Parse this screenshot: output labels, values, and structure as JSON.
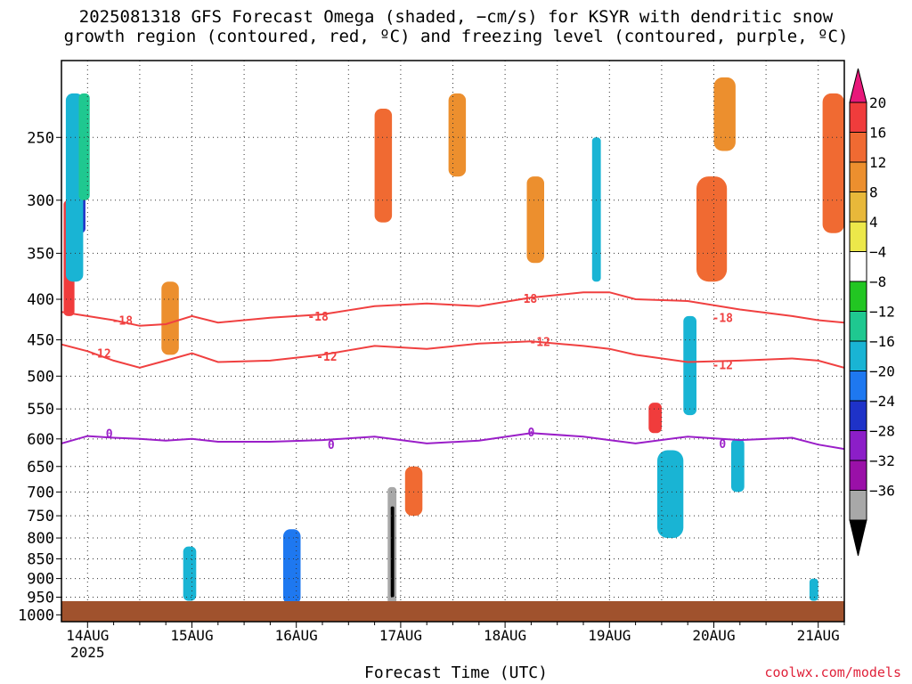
{
  "title_line1": "2025081318 GFS Forecast Omega (shaded, −cm/s) for KSYR with dendritic snow",
  "title_line2": "growth region (contoured, red, ºC) and freezing level (contoured, purple, ºC)",
  "credit": "coolwx.com/models",
  "chart_data": {
    "type": "heatmap",
    "title": "2025081318 GFS Forecast Omega (shaded, −cm/s) for KSYR with dendritic snow growth region (contoured, red, ºC) and freezing level (contoured, purple, ºC)",
    "xlabel": "Forecast Time (UTC)",
    "ylabel": "",
    "x_ticks": [
      "14AUG",
      "15AUG",
      "16AUG",
      "17AUG",
      "18AUG",
      "19AUG",
      "20AUG",
      "21AUG"
    ],
    "x_tick_year": "2025",
    "x_tick_hours": [
      6,
      30,
      54,
      78,
      102,
      126,
      150,
      174
    ],
    "x_range_hours": [
      0,
      180
    ],
    "y_ticks": [
      250,
      300,
      350,
      400,
      450,
      500,
      550,
      600,
      650,
      700,
      750,
      800,
      850,
      900,
      950,
      1000
    ],
    "y_range_hpa": [
      200,
      1020
    ],
    "y_scale": "log, pressure decreasing upward",
    "grid": true,
    "colorbar": {
      "labels": [
        "20",
        "16",
        "12",
        "8",
        "4",
        "−4",
        "−8",
        "−12",
        "−16",
        "−20",
        "−24",
        "−28",
        "−32",
        "−36"
      ],
      "colors": [
        "#e8187a",
        "#f03c3c",
        "#f06a32",
        "#ec8f2e",
        "#e8b83a",
        "#ece84a",
        "#ffffff",
        "#22c622",
        "#1fc890",
        "#19b4d4",
        "#1e78f0",
        "#1e32c8",
        "#8c1ec8",
        "#9a10a8",
        "#a8a8a8",
        "#000000"
      ]
    },
    "contours": [
      {
        "level": "-18",
        "color": "#f04040",
        "x_hours": [
          0,
          6,
          12,
          18,
          24,
          30,
          36,
          48,
          60,
          72,
          84,
          96,
          108,
          120,
          126,
          132,
          144,
          156,
          168,
          174,
          180
        ],
        "y_hpa": [
          415,
          420,
          425,
          432,
          430,
          420,
          428,
          422,
          418,
          408,
          405,
          408,
          398,
          392,
          392,
          400,
          402,
          412,
          420,
          425,
          428
        ]
      },
      {
        "level": "-12",
        "color": "#f04040",
        "x_hours": [
          0,
          6,
          12,
          18,
          24,
          30,
          36,
          48,
          60,
          72,
          84,
          96,
          108,
          120,
          126,
          132,
          144,
          156,
          168,
          174,
          180
        ],
        "y_hpa": [
          456,
          465,
          478,
          488,
          478,
          468,
          480,
          478,
          470,
          458,
          462,
          455,
          452,
          458,
          462,
          470,
          480,
          478,
          475,
          478,
          488
        ]
      },
      {
        "level": "0",
        "color": "#9a1ec8",
        "x_hours": [
          0,
          6,
          12,
          18,
          24,
          30,
          36,
          48,
          60,
          72,
          84,
          96,
          108,
          120,
          126,
          132,
          144,
          156,
          168,
          174,
          180
        ],
        "y_hpa": [
          608,
          595,
          598,
          600,
          603,
          600,
          605,
          605,
          602,
          596,
          608,
          603,
          590,
          596,
          602,
          608,
          596,
          602,
          598,
          610,
          618
        ]
      }
    ],
    "contour_labels": [
      {
        "text": "-18",
        "x_hour": 14,
        "y_hpa": 425
      },
      {
        "text": "-18",
        "x_hour": 59,
        "y_hpa": 420
      },
      {
        "text": "-18",
        "x_hour": 107,
        "y_hpa": 399
      },
      {
        "text": "-18",
        "x_hour": 152,
        "y_hpa": 422
      },
      {
        "text": "-12",
        "x_hour": 9,
        "y_hpa": 468
      },
      {
        "text": "-12",
        "x_hour": 61,
        "y_hpa": 472
      },
      {
        "text": "-12",
        "x_hour": 110,
        "y_hpa": 452
      },
      {
        "text": "-12",
        "x_hour": 152,
        "y_hpa": 484
      },
      {
        "text": "0",
        "x_hour": 11,
        "y_hpa": 590
      },
      {
        "text": "0",
        "x_hour": 62,
        "y_hpa": 610
      },
      {
        "text": "0",
        "x_hour": 108,
        "y_hpa": 588
      },
      {
        "text": "0",
        "x_hour": 152,
        "y_hpa": 608
      }
    ],
    "shaded_cells": [
      {
        "x_hours": [
          0.5,
          3
        ],
        "y_hpa": [
          300,
          420
        ],
        "value": 16
      },
      {
        "x_hours": [
          3,
          5.5
        ],
        "y_hpa": [
          290,
          330
        ],
        "value": -20
      },
      {
        "x_hours": [
          1,
          5
        ],
        "y_hpa": [
          220,
          380
        ],
        "value": -12
      },
      {
        "x_hours": [
          4,
          6.5
        ],
        "y_hpa": [
          220,
          300
        ],
        "value": -8
      },
      {
        "x_hours": [
          23,
          27
        ],
        "y_hpa": [
          380,
          470
        ],
        "value": 8
      },
      {
        "x_hours": [
          28,
          31
        ],
        "y_hpa": [
          820,
          960
        ],
        "value": -12
      },
      {
        "x_hours": [
          51,
          55
        ],
        "y_hpa": [
          780,
          970
        ],
        "value": -16
      },
      {
        "x_hours": [
          75,
          77
        ],
        "y_hpa": [
          690,
          975
        ],
        "value": -32
      },
      {
        "x_hours": [
          75.7,
          76.5
        ],
        "y_hpa": [
          730,
          950
        ],
        "value": -36
      },
      {
        "x_hours": [
          79,
          83
        ],
        "y_hpa": [
          650,
          750
        ],
        "value": 12
      },
      {
        "x_hours": [
          72,
          76
        ],
        "y_hpa": [
          230,
          320
        ],
        "value": 12
      },
      {
        "x_hours": [
          89,
          93
        ],
        "y_hpa": [
          220,
          280
        ],
        "value": 8
      },
      {
        "x_hours": [
          107,
          111
        ],
        "y_hpa": [
          280,
          360
        ],
        "value": 8
      },
      {
        "x_hours": [
          122,
          124
        ],
        "y_hpa": [
          250,
          380
        ],
        "value": -12
      },
      {
        "x_hours": [
          135,
          138
        ],
        "y_hpa": [
          540,
          590
        ],
        "value": 16
      },
      {
        "x_hours": [
          137,
          143
        ],
        "y_hpa": [
          620,
          800
        ],
        "value": -12
      },
      {
        "x_hours": [
          143,
          146
        ],
        "y_hpa": [
          420,
          560
        ],
        "value": -12
      },
      {
        "x_hours": [
          146,
          153
        ],
        "y_hpa": [
          280,
          380
        ],
        "value": 12
      },
      {
        "x_hours": [
          150,
          155
        ],
        "y_hpa": [
          210,
          260
        ],
        "value": 8
      },
      {
        "x_hours": [
          154,
          157
        ],
        "y_hpa": [
          600,
          700
        ],
        "value": -12
      },
      {
        "x_hours": [
          175,
          180
        ],
        "y_hpa": [
          220,
          330
        ],
        "value": 12
      },
      {
        "x_hours": [
          172,
          174
        ],
        "y_hpa": [
          900,
          960
        ],
        "value": -12
      }
    ]
  }
}
